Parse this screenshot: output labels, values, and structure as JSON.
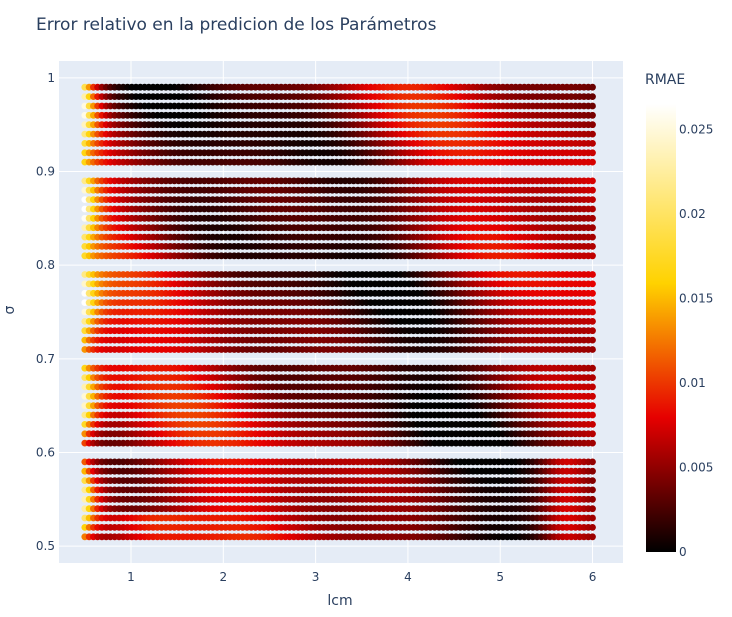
{
  "chart_data": {
    "type": "scatter",
    "title": "Error relativo en la predicion de los Parámetros",
    "xlabel": "lcm",
    "ylabel": "σ",
    "xlim": [
      0.22,
      6.33
    ],
    "ylim": [
      0.482,
      1.018
    ],
    "x_ticks": [
      1,
      2,
      3,
      4,
      5,
      6
    ],
    "y_ticks": [
      0.5,
      0.6,
      0.7,
      0.8,
      0.9,
      1
    ],
    "x_range_points": [
      0.5,
      6.0
    ],
    "sigma_values": [
      0.51,
      0.52,
      0.53,
      0.54,
      0.55,
      0.56,
      0.57,
      0.58,
      0.59,
      0.61,
      0.62,
      0.63,
      0.64,
      0.65,
      0.66,
      0.67,
      0.68,
      0.69,
      0.71,
      0.72,
      0.73,
      0.74,
      0.75,
      0.76,
      0.77,
      0.78,
      0.79,
      0.81,
      0.82,
      0.83,
      0.84,
      0.85,
      0.86,
      0.87,
      0.88,
      0.89,
      0.91,
      0.92,
      0.93,
      0.94,
      0.95,
      0.96,
      0.97,
      0.98,
      0.99
    ],
    "colorscale": "hot",
    "colorbar": {
      "title": "RMAE",
      "min": 0,
      "max": 0.0265,
      "ticks": [
        0,
        0.005,
        0.01,
        0.015,
        0.02,
        0.025
      ],
      "tick_labels": [
        "0",
        "0.005",
        "0.01",
        "0.015",
        "0.02",
        "0.025"
      ]
    },
    "grid": true,
    "colors": {
      "plot_bg": "#e5ecf6",
      "grid": "#ffffff",
      "text": "#2a3f5f"
    }
  }
}
